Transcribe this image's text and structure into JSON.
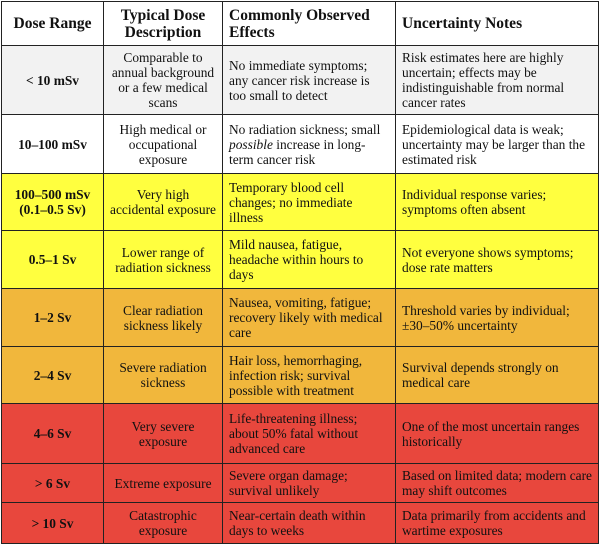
{
  "table": {
    "header": [
      "Dose Range",
      "Typical Dose Description",
      "Commonly Observed Effects",
      "Uncertainty Notes"
    ],
    "rows": [
      {
        "color": "#f2f2f2",
        "cells": [
          "< 10 mSv",
          "Comparable to annual background or a few medical scans",
          "No immediate symptoms; any cancer risk increase is too small to detect",
          "Risk estimates here are highly uncertain; effects may be indistinguishable from normal cancer rates"
        ]
      },
      {
        "color": "#ffffff",
        "cells": [
          "10–100 mSv",
          "High medical or occupational exposure",
          [
            {
              "text": "No radiation sickness; small"
            },
            {
              "text": "possible",
              "italic": true
            },
            {
              "text": "increase in long-term cancer risk"
            }
          ],
          "Epidemiological data is weak; uncertainty may be larger than the estimated risk"
        ]
      },
      {
        "color": "#ffff3f",
        "cells": [
          [
            "100–500 mSv",
            "(0.1–0.5 Sv)"
          ],
          "Very high accidental exposure",
          "Temporary blood cell changes; no immediate illness",
          "Individual response varies; symptoms often absent"
        ]
      },
      {
        "color": "#ffff3f",
        "cells": [
          "0.5–1 Sv",
          "Lower range of radiation sickness",
          "Mild nausea, fatigue, headache within hours to days",
          "Not everyone shows symptoms; dose rate matters"
        ]
      },
      {
        "color": "#f1b73c",
        "cells": [
          "1–2 Sv",
          "Clear radiation sickness likely",
          "Nausea, vomiting, fatigue; recovery likely with medical care",
          "Threshold varies by individual; ±30–50% uncertainty"
        ]
      },
      {
        "color": "#f1b73c",
        "cells": [
          "2–4 Sv",
          "Severe radiation sickness",
          "Hair loss, hemorrhaging, infection risk; survival possible with treatment",
          "Survival depends strongly on medical care"
        ]
      },
      {
        "color": "#e8473d",
        "cells": [
          "4–6 Sv",
          "Very severe exposure",
          "Life-threatening illness; about 50% fatal without advanced care",
          "One of the most uncertain ranges historically"
        ]
      },
      {
        "color": "#e8473d",
        "cells": [
          "> 6 Sv",
          "Extreme exposure",
          "Severe organ damage; survival unlikely",
          "Based on limited data; modern care may shift outcomes"
        ]
      },
      {
        "color": "#e8473d",
        "cells": [
          "> 10 Sv",
          "Catastrophic exposure",
          "Near-certain death within days to weeks",
          "Data primarily from accidents and wartime exposures"
        ]
      }
    ]
  }
}
